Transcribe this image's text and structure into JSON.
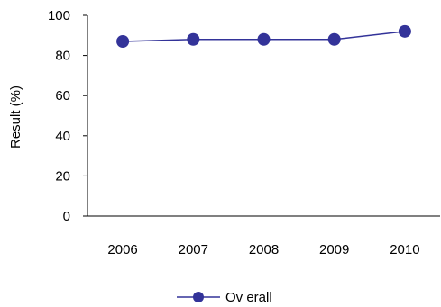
{
  "chart_data": {
    "type": "line",
    "title": "",
    "xlabel": "",
    "ylabel": "Result (%)",
    "categories": [
      "2006",
      "2007",
      "2008",
      "2009",
      "2010"
    ],
    "ylim": [
      0,
      100
    ],
    "yticks": [
      "0",
      "20",
      "40",
      "60",
      "80",
      "100"
    ],
    "grid": false,
    "legend": "bottom-center",
    "series": [
      {
        "name": "Ov erall",
        "values": [
          87,
          88,
          88,
          88,
          92
        ],
        "color": "#333399"
      }
    ]
  }
}
